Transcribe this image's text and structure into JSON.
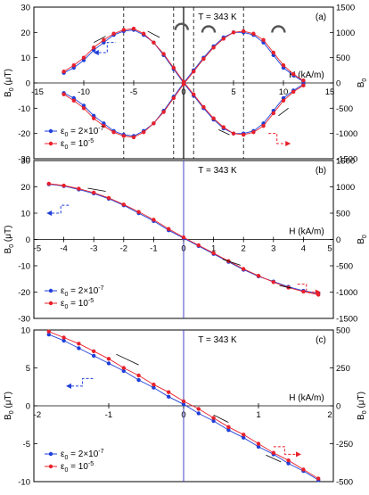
{
  "chart_data": [
    {
      "type": "scatter",
      "panel_label": "(a)",
      "annotation": "T = 343 K",
      "xlabel": "H (kA/m)",
      "ylabel_left": "B",
      "ylabel_left_sub": "0",
      "ylabel_left_unit": "(μT)",
      "ylabel_right": "B",
      "ylabel_right_sub": "0",
      "ylabel_right_unit": "",
      "xlim": [
        -15,
        15
      ],
      "ylim": [
        -30,
        30
      ],
      "ylim_right": [
        -1500,
        1500
      ],
      "x_ticks": [
        -15,
        -10,
        -5,
        0,
        5,
        10,
        15
      ],
      "x_tick_labels": [
        "-15",
        "-10",
        "-5",
        "0",
        "5",
        "10",
        "15"
      ],
      "y_ticks": [
        -30,
        -20,
        -10,
        0,
        10,
        20,
        30
      ],
      "y_tick_labels": [
        "-30",
        "-20",
        "-10",
        "0",
        "10",
        "20",
        "30"
      ],
      "y2_ticks": [
        -1500,
        -1000,
        -500,
        0,
        500,
        1000,
        1500
      ],
      "y2_tick_labels": [
        "-1500",
        "-1000",
        "-500",
        "0",
        "500",
        "1000",
        "1500"
      ],
      "dashed_vlines": [
        -6,
        -1,
        1,
        6
      ],
      "legend": [
        {
          "prefix": "ε",
          "sub": "0",
          "text": " = 2×10",
          "sup": "-7",
          "color": "#1f3fd9"
        },
        {
          "prefix": "ε",
          "sub": "0",
          "text": " = 10",
          "sup": "-5",
          "color": "#e8202a"
        }
      ],
      "series": [
        {
          "name": "ε0 = 2×10-7 (increasing H)",
          "color": "#1f3fd9",
          "x": [
            -12,
            -11,
            -10,
            -9,
            -8,
            -7,
            -6,
            -5,
            -4,
            -3,
            -2,
            -1,
            0,
            1,
            2,
            3,
            4,
            5,
            6,
            7,
            8,
            9,
            10,
            11,
            12
          ],
          "y": [
            4,
            6,
            9,
            13,
            16,
            19,
            20.5,
            21,
            19,
            16,
            11,
            5.5,
            0,
            -5,
            -10,
            -14.5,
            -18,
            -20,
            -20,
            -19,
            -16,
            -11,
            -6,
            -3,
            -0.5
          ]
        },
        {
          "name": "ε0 = 2×10-7 (decreasing H)",
          "color": "#1f3fd9",
          "x": [
            12,
            11,
            10,
            9,
            8,
            7,
            6,
            5,
            4,
            3,
            2,
            1,
            0,
            -1,
            -2,
            -3,
            -4,
            -5,
            -6,
            -7,
            -8,
            -9,
            -10,
            -11,
            -12
          ],
          "y": [
            0.5,
            3,
            6,
            11,
            16,
            19,
            20,
            20,
            18,
            14.5,
            10,
            5,
            0,
            -5.5,
            -11,
            -16,
            -19,
            -21,
            -20.5,
            -19,
            -16,
            -13,
            -9,
            -6,
            -4
          ]
        },
        {
          "name": "ε0 = 10-5 (increasing H)",
          "color": "#e8202a",
          "x": [
            -12,
            -11,
            -10,
            -9,
            -8,
            -7,
            -6,
            -5,
            -4,
            -3,
            -2,
            -1,
            0,
            1,
            2,
            3,
            4,
            5,
            6,
            7,
            8,
            9,
            10,
            11,
            12
          ],
          "y": [
            4.5,
            7,
            10,
            14,
            17,
            19.5,
            21,
            21.5,
            19.5,
            16,
            11.5,
            6,
            0.5,
            -4.5,
            -9.5,
            -14,
            -17.5,
            -20,
            -20.5,
            -19.5,
            -17,
            -12,
            -7,
            -3.5,
            -1
          ]
        },
        {
          "name": "ε0 = 10-5 (decreasing H)",
          "color": "#e8202a",
          "x": [
            12,
            11,
            10,
            9,
            8,
            7,
            6,
            5,
            4,
            3,
            2,
            1,
            0,
            -1,
            -2,
            -3,
            -4,
            -5,
            -6,
            -7,
            -8,
            -9,
            -10,
            -11,
            -12
          ],
          "y": [
            1,
            3.5,
            7,
            12,
            17,
            19.5,
            20.5,
            20,
            17.5,
            14,
            9.5,
            4.5,
            -0.5,
            -6,
            -11.5,
            -16,
            -19.5,
            -21.5,
            -21,
            -19.5,
            -17,
            -14,
            -10,
            -7,
            -4.5
          ]
        }
      ],
      "indicators": [
        {
          "side": "left",
          "color": "#1f3fd9",
          "x0": -8.5,
          "x1": -6.8,
          "y_step": [
            12,
            16
          ]
        },
        {
          "side": "right",
          "color": "#e8202a",
          "x0": 8.5,
          "x1": 10.2,
          "y_step": [
            -20,
            -24
          ]
        }
      ]
    },
    {
      "type": "scatter",
      "panel_label": "(b)",
      "annotation": "T = 343 K",
      "xlabel": "H (kA/m)",
      "ylabel_left": "B",
      "ylabel_left_sub": "0",
      "ylabel_left_unit": "(μT)",
      "ylabel_right": "B",
      "ylabel_right_sub": "0",
      "ylabel_right_unit": "",
      "xlim": [
        -5,
        5
      ],
      "ylim": [
        -30,
        30
      ],
      "ylim_right": [
        -1500,
        1500
      ],
      "x_ticks": [
        -5,
        -4,
        -3,
        -2,
        -1,
        0,
        1,
        2,
        3,
        4,
        5
      ],
      "x_tick_labels": [
        "-5",
        "-4",
        "-3",
        "-2",
        "-1",
        "0",
        "1",
        "2",
        "3",
        "4",
        "5"
      ],
      "y_ticks": [
        -30,
        -20,
        -10,
        0,
        10,
        20,
        30
      ],
      "y_tick_labels": [
        "-30",
        "-20",
        "-10",
        "0",
        "10",
        "20",
        "30"
      ],
      "y2_ticks": [
        -1500,
        -1000,
        -500,
        0,
        500,
        1000,
        1500
      ],
      "y2_tick_labels": [
        "-1500",
        "-1000",
        "-500",
        "0",
        "500",
        "1000",
        "1500"
      ],
      "dashed_vlines": [],
      "legend": [
        {
          "prefix": "ε",
          "sub": "0",
          "text": " = 2×10",
          "sup": "-7",
          "color": "#1f3fd9"
        },
        {
          "prefix": "ε",
          "sub": "0",
          "text": " = 10",
          "sup": "-5",
          "color": "#e8202a"
        }
      ],
      "series": [
        {
          "name": "ε0 = 2×10-7",
          "color": "#1f3fd9",
          "x": [
            -4.5,
            -4,
            -3.5,
            -3,
            -2.5,
            -2,
            -1.5,
            -1,
            -0.5,
            0,
            0.5,
            1,
            1.5,
            2,
            2.5,
            3,
            3.5,
            4,
            4.5
          ],
          "y": [
            21,
            20.3,
            19,
            17.5,
            15.5,
            13,
            10,
            7,
            3.5,
            0.5,
            -2.5,
            -5.5,
            -8.5,
            -11.5,
            -14,
            -16,
            -18,
            -19.5,
            -20.5
          ]
        },
        {
          "name": "ε0 = 10-5",
          "color": "#e8202a",
          "x": [
            -4.5,
            -4,
            -3.5,
            -3,
            -2.5,
            -2,
            -1.5,
            -1,
            -0.5,
            0,
            0.5,
            1,
            1.5,
            2,
            2.5,
            3,
            3.5,
            4,
            4.5
          ],
          "y": [
            21.2,
            20.5,
            19.3,
            17.8,
            15.8,
            13.3,
            10.5,
            7.5,
            4,
            0.8,
            -2.2,
            -5.2,
            -8.2,
            -11.2,
            -13.8,
            -16.2,
            -18.3,
            -19.8,
            -21
          ]
        }
      ],
      "indicators": [
        {
          "side": "left",
          "color": "#1f3fd9",
          "x0": -4.4,
          "x1": -3.8,
          "y_step": [
            10,
            13
          ]
        },
        {
          "side": "right",
          "color": "#e8202a",
          "x0": 3.8,
          "x1": 4.4,
          "y_step": [
            -17,
            -20
          ]
        }
      ]
    },
    {
      "type": "scatter",
      "panel_label": "(c)",
      "annotation": "T = 343 K",
      "xlabel": "H (kA/m)",
      "ylabel_left": "B",
      "ylabel_left_sub": "0",
      "ylabel_left_unit": "(μT)",
      "ylabel_right": "B",
      "ylabel_right_sub": "0",
      "ylabel_right_unit": "(μT)",
      "xlim": [
        -2,
        2
      ],
      "ylim": [
        -10,
        10
      ],
      "ylim_right": [
        -500,
        500
      ],
      "x_ticks": [
        -2,
        -1,
        0,
        1,
        2
      ],
      "x_tick_labels": [
        "-2",
        "-1",
        "0",
        "1",
        "2"
      ],
      "y_ticks": [
        -10,
        -5,
        0,
        5,
        10
      ],
      "y_tick_labels": [
        "-10",
        "-5",
        "0",
        "5",
        "10"
      ],
      "y2_ticks": [
        -500,
        -250,
        0,
        250,
        500
      ],
      "y2_tick_labels": [
        "-500",
        "-250",
        "0",
        "250",
        "500"
      ],
      "dashed_vlines": [],
      "legend": [
        {
          "prefix": "ε",
          "sub": "0",
          "text": " = 2×10",
          "sup": "-7",
          "color": "#1f3fd9"
        },
        {
          "prefix": "ε",
          "sub": "0",
          "text": " = 10",
          "sup": "-5",
          "color": "#e8202a"
        }
      ],
      "series": [
        {
          "name": "ε0 = 2×10-7 (increasing H)",
          "color": "#1f3fd9",
          "x": [
            -1.8,
            -1.6,
            -1.4,
            -1.2,
            -1.0,
            -0.8,
            -0.6,
            -0.4,
            -0.2,
            0,
            0.2,
            0.4,
            0.6,
            0.8,
            1.0,
            1.2,
            1.4,
            1.6,
            1.8
          ],
          "y": [
            9.4,
            8.6,
            7.6,
            6.6,
            5.6,
            4.6,
            3.4,
            2.4,
            1.2,
            0.2,
            -1.0,
            -2.0,
            -3.2,
            -4.2,
            -5.4,
            -6.4,
            -7.6,
            -8.6,
            -9.8
          ]
        },
        {
          "name": "ε0 = 10-5 (decreasing H)",
          "color": "#e8202a",
          "x": [
            1.8,
            1.6,
            1.4,
            1.2,
            1.0,
            0.8,
            0.6,
            0.4,
            0.2,
            0,
            -0.2,
            -0.4,
            -0.6,
            -0.8,
            -1.0,
            -1.2,
            -1.4,
            -1.6,
            -1.8
          ],
          "y": [
            -9.6,
            -8.4,
            -7.2,
            -6.2,
            -5.0,
            -3.8,
            -2.8,
            -1.6,
            -0.4,
            0.6,
            1.8,
            2.8,
            4.0,
            5.0,
            6.2,
            7.2,
            8.2,
            9.0,
            9.8
          ]
        }
      ],
      "indicators": [
        {
          "side": "left",
          "color": "#1f3fd9",
          "x0": -1.5,
          "x1": -1.2,
          "y_step": [
            2.6,
            3.6
          ]
        },
        {
          "side": "right",
          "color": "#e8202a",
          "x0": 1.2,
          "x1": 1.5,
          "y_step": [
            -5.4,
            -6.4
          ]
        }
      ]
    }
  ]
}
